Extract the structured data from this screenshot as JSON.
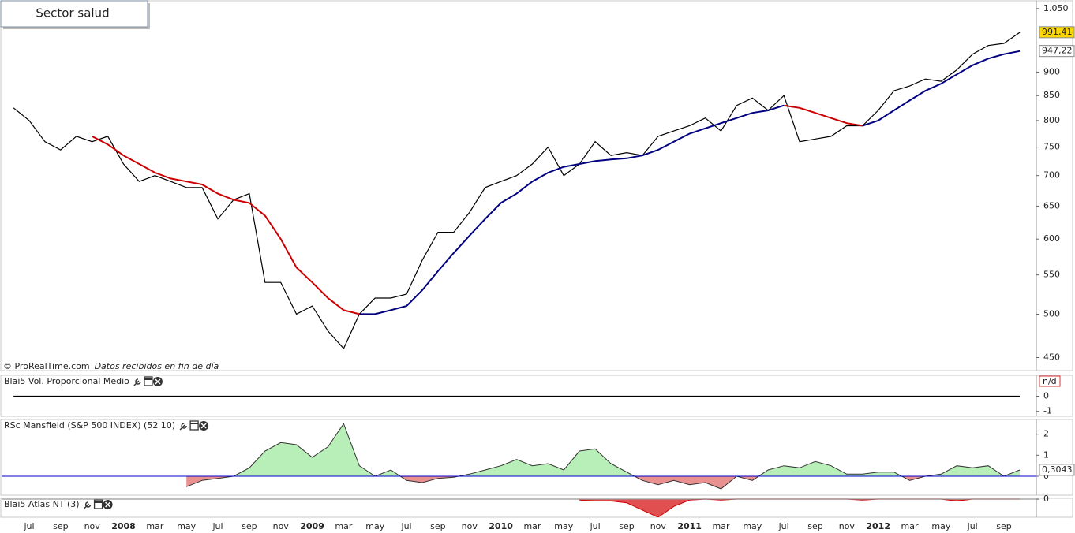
{
  "chart_data": [
    {
      "type": "line",
      "title": "Sector salud",
      "attribution": "© ProRealTime.com",
      "note": "Datos recibidos en fin de día",
      "log_scale": true,
      "ylim": [
        436,
        1070
      ],
      "yticks": [
        450,
        500,
        550,
        600,
        650,
        700,
        750,
        800,
        850,
        900,
        {
          "value": 1050,
          "label": "1.050"
        }
      ],
      "x": [
        "2007-06",
        "2007-07",
        "2007-08",
        "2007-09",
        "2007-10",
        "2007-11",
        "2007-12",
        "2008-01",
        "2008-02",
        "2008-03",
        "2008-04",
        "2008-05",
        "2008-06",
        "2008-07",
        "2008-08",
        "2008-09",
        "2008-10",
        "2008-11",
        "2008-12",
        "2009-01",
        "2009-02",
        "2009-03",
        "2009-04",
        "2009-05",
        "2009-06",
        "2009-07",
        "2009-08",
        "2009-09",
        "2009-10",
        "2009-11",
        "2009-12",
        "2010-01",
        "2010-02",
        "2010-03",
        "2010-04",
        "2010-05",
        "2010-06",
        "2010-07",
        "2010-08",
        "2010-09",
        "2010-10",
        "2010-11",
        "2010-12",
        "2011-01",
        "2011-02",
        "2011-03",
        "2011-04",
        "2011-05",
        "2011-06",
        "2011-07",
        "2011-08",
        "2011-09",
        "2011-10",
        "2011-11",
        "2011-12",
        "2012-01",
        "2012-02",
        "2012-03",
        "2012-04",
        "2012-05",
        "2012-06",
        "2012-07",
        "2012-08",
        "2012-09",
        "2012-10"
      ],
      "series": [
        {
          "color": "#000000",
          "values": [
            825,
            800,
            760,
            745,
            770,
            760,
            770,
            720,
            690,
            700,
            690,
            680,
            680,
            630,
            660,
            670,
            540,
            540,
            500,
            510,
            480,
            460,
            500,
            520,
            520,
            525,
            570,
            610,
            610,
            640,
            680,
            690,
            700,
            720,
            750,
            700,
            720,
            760,
            735,
            740,
            735,
            770,
            780,
            790,
            805,
            780,
            830,
            845,
            820,
            850,
            760,
            765,
            770,
            790,
            790,
            820,
            860,
            870,
            885,
            880,
            905,
            940,
            960,
            965,
            991
          ]
        },
        {
          "color": "#cc0000",
          "values": [
            null,
            null,
            null,
            null,
            null,
            770,
            755,
            735,
            720,
            705,
            695,
            690,
            685,
            670,
            660,
            655,
            635,
            600,
            560,
            540,
            520,
            505,
            500,
            null,
            null,
            null,
            null,
            null,
            null,
            null,
            null,
            null,
            null,
            null,
            null,
            null,
            null,
            null,
            null,
            null,
            null,
            null,
            null,
            null,
            null,
            null,
            null,
            null,
            null,
            830,
            825,
            815,
            805,
            795,
            790,
            null,
            null,
            null,
            null,
            null,
            null,
            null,
            null,
            null,
            null
          ]
        },
        {
          "color": "#000080",
          "values": [
            null,
            null,
            null,
            null,
            null,
            null,
            null,
            null,
            null,
            null,
            null,
            null,
            null,
            null,
            null,
            null,
            null,
            null,
            null,
            null,
            null,
            null,
            500,
            500,
            505,
            510,
            530,
            555,
            580,
            605,
            630,
            655,
            670,
            690,
            705,
            715,
            720,
            725,
            728,
            730,
            735,
            745,
            760,
            775,
            785,
            795,
            805,
            815,
            820,
            830,
            null,
            null,
            null,
            null,
            790,
            800,
            820,
            840,
            860,
            875,
            895,
            915,
            930,
            940,
            947
          ]
        }
      ],
      "price_labels": [
        {
          "value": 991.41,
          "label": "991,41",
          "color": "#ffd700"
        },
        {
          "value": 947.22,
          "label": "947,22",
          "color": "#ffffff"
        }
      ],
      "xticks": [
        {
          "value": "2007-07",
          "label": "jul"
        },
        {
          "value": "2007-09",
          "label": "sep"
        },
        {
          "value": "2007-11",
          "label": "nov"
        },
        {
          "value": "2008-01",
          "label": "2008"
        },
        {
          "value": "2008-03",
          "label": "mar"
        },
        {
          "value": "2008-05",
          "label": "may"
        },
        {
          "value": "2008-07",
          "label": "jul"
        },
        {
          "value": "2008-09",
          "label": "sep"
        },
        {
          "value": "2008-11",
          "label": "nov"
        },
        {
          "value": "2009-01",
          "label": "2009"
        },
        {
          "value": "2009-03",
          "label": "mar"
        },
        {
          "value": "2009-05",
          "label": "may"
        },
        {
          "value": "2009-07",
          "label": "jul"
        },
        {
          "value": "2009-09",
          "label": "sep"
        },
        {
          "value": "2009-11",
          "label": "nov"
        },
        {
          "value": "2010-01",
          "label": "2010"
        },
        {
          "value": "2010-03",
          "label": "mar"
        },
        {
          "value": "2010-05",
          "label": "may"
        },
        {
          "value": "2010-07",
          "label": "jul"
        },
        {
          "value": "2010-09",
          "label": "sep"
        },
        {
          "value": "2010-11",
          "label": "nov"
        },
        {
          "value": "2011-01",
          "label": "2011"
        },
        {
          "value": "2011-03",
          "label": "mar"
        },
        {
          "value": "2011-05",
          "label": "may"
        },
        {
          "value": "2011-07",
          "label": "jul"
        },
        {
          "value": "2011-09",
          "label": "sep"
        },
        {
          "value": "2011-11",
          "label": "nov"
        },
        {
          "value": "2012-01",
          "label": "2012"
        },
        {
          "value": "2012-03",
          "label": "mar"
        },
        {
          "value": "2012-05",
          "label": "may"
        },
        {
          "value": "2012-07",
          "label": "jul"
        },
        {
          "value": "2012-09",
          "label": "sep"
        }
      ]
    },
    {
      "type": "line",
      "title": "Blai5 Vol. Proporcional Medio",
      "status_label": "n/d",
      "ylim": [
        -1.33,
        1.38
      ],
      "yticks": [
        0,
        -1
      ],
      "x": [
        "2007-06",
        "2012-10"
      ],
      "series": [
        {
          "color": "#000000",
          "values": [
            0,
            0
          ]
        }
      ]
    },
    {
      "type": "area",
      "title": "RSc Mansfield (S&P 500 INDEX) (52 10)",
      "ylim": [
        -0.9,
        2.7
      ],
      "yticks": [
        0,
        1,
        2
      ],
      "baseline_color": "#0000cc",
      "positive_color": "#b8efb8",
      "negative_color": "#e99090",
      "line_color": "#333333",
      "last_label": {
        "value": 0.3043,
        "label": "0,3043"
      },
      "x": [
        "2008-05",
        "2008-06",
        "2008-07",
        "2008-08",
        "2008-09",
        "2008-10",
        "2008-11",
        "2008-12",
        "2009-01",
        "2009-02",
        "2009-03",
        "2009-04",
        "2009-05",
        "2009-06",
        "2009-07",
        "2009-08",
        "2009-09",
        "2009-10",
        "2009-11",
        "2009-12",
        "2010-01",
        "2010-02",
        "2010-03",
        "2010-04",
        "2010-05",
        "2010-06",
        "2010-07",
        "2010-08",
        "2010-09",
        "2010-10",
        "2010-11",
        "2010-12",
        "2011-01",
        "2011-02",
        "2011-03",
        "2011-04",
        "2011-05",
        "2011-06",
        "2011-07",
        "2011-08",
        "2011-09",
        "2011-10",
        "2011-11",
        "2011-12",
        "2012-01",
        "2012-02",
        "2012-03",
        "2012-04",
        "2012-05",
        "2012-06",
        "2012-07",
        "2012-08",
        "2012-09",
        "2012-10"
      ],
      "values": [
        -0.5,
        -0.2,
        -0.1,
        0,
        0.4,
        1.2,
        1.6,
        1.5,
        0.9,
        1.4,
        2.5,
        0.5,
        0,
        0.3,
        -0.2,
        -0.3,
        -0.1,
        -0.05,
        0.1,
        0.3,
        0.5,
        0.8,
        0.5,
        0.6,
        0.3,
        1.2,
        1.3,
        0.6,
        0.2,
        -0.2,
        -0.4,
        -0.2,
        -0.4,
        -0.3,
        -0.6,
        0,
        -0.2,
        0.3,
        0.5,
        0.4,
        0.7,
        0.5,
        0.1,
        0.1,
        0.2,
        0.2,
        -0.2,
        0,
        0.1,
        0.5,
        0.4,
        0.5,
        0,
        0.3
      ]
    },
    {
      "type": "area",
      "title": "Blai5 Atlas NT (3)",
      "ylim": [
        -1,
        0.05
      ],
      "yticks": [
        0
      ],
      "baseline_color": "#999999",
      "positive_color": "#b8efb8",
      "negative_color": "#e05050",
      "line_color": "#cc0000",
      "x": [
        "2010-06",
        "2010-07",
        "2010-08",
        "2010-09",
        "2010-10",
        "2010-11",
        "2010-12",
        "2011-01",
        "2011-02",
        "2011-03",
        "2011-04",
        "2011-05",
        "2011-06",
        "2011-07",
        "2011-08",
        "2011-09",
        "2011-10",
        "2011-11",
        "2011-12",
        "2012-01",
        "2012-02",
        "2012-03",
        "2012-04",
        "2012-05",
        "2012-06",
        "2012-07",
        "2012-08",
        "2012-09",
        "2012-10"
      ],
      "values": [
        -0.05,
        -0.1,
        -0.1,
        -0.2,
        -0.6,
        -1.0,
        -0.4,
        -0.05,
        0,
        -0.05,
        0,
        0,
        0,
        0,
        0,
        0,
        0,
        0,
        -0.05,
        0,
        0,
        0,
        0,
        0,
        -0.1,
        0,
        0,
        0,
        0
      ]
    }
  ]
}
